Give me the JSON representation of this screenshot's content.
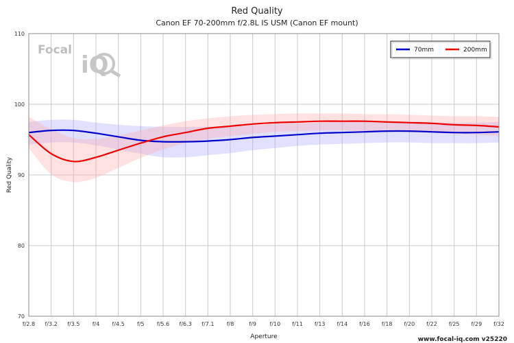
{
  "chart_data": {
    "type": "line",
    "title": "Red Quality",
    "subtitle": "Canon EF 70-200mm f/2.8L IS USM (Canon EF mount)",
    "xlabel": "Aperture",
    "ylabel": "Red Quality",
    "ylim": [
      70,
      110
    ],
    "yticks": [
      70,
      80,
      90,
      100,
      110
    ],
    "categories": [
      "f/2.8",
      "f/3.2",
      "f/3.5",
      "f/4",
      "f/4.5",
      "f/5",
      "f/5.6",
      "f/6.3",
      "f/7.1",
      "f/8",
      "f/9",
      "f/10",
      "f/11",
      "f/13",
      "f/14",
      "f/16",
      "f/18",
      "f/20",
      "f/22",
      "f/25",
      "f/29",
      "f/32"
    ],
    "grid": true,
    "legend_position": "top-right",
    "series": [
      {
        "name": "70mm",
        "color": "#0000cc",
        "band_color": "#aaaaff",
        "values": [
          96.0,
          96.3,
          96.3,
          95.9,
          95.4,
          94.9,
          94.7,
          94.7,
          94.8,
          95.0,
          95.3,
          95.5,
          95.7,
          95.9,
          96.0,
          96.1,
          96.2,
          96.2,
          96.1,
          96.0,
          96.0,
          96.1
        ],
        "upper": [
          97.5,
          97.8,
          97.8,
          97.4,
          97.1,
          96.9,
          96.8,
          96.8,
          96.8,
          96.9,
          97.0,
          97.2,
          97.3,
          97.4,
          97.5,
          97.5,
          97.5,
          97.5,
          97.4,
          97.4,
          97.4,
          97.5
        ],
        "lower": [
          94.3,
          94.6,
          94.6,
          94.2,
          93.6,
          93.0,
          92.5,
          92.5,
          92.8,
          93.1,
          93.5,
          93.8,
          94.1,
          94.3,
          94.4,
          94.5,
          94.6,
          94.6,
          94.5,
          94.5,
          94.5,
          94.6
        ]
      },
      {
        "name": "200mm",
        "color": "#ee0000",
        "band_color": "#ffaaaa",
        "values": [
          95.7,
          93.0,
          91.9,
          92.5,
          93.5,
          94.5,
          95.4,
          96.0,
          96.6,
          96.9,
          97.2,
          97.4,
          97.5,
          97.6,
          97.6,
          97.6,
          97.5,
          97.4,
          97.3,
          97.1,
          97.0,
          96.8
        ],
        "upper": [
          98.2,
          96.5,
          95.2,
          95.1,
          95.6,
          96.3,
          97.0,
          97.6,
          98.0,
          98.3,
          98.5,
          98.6,
          98.7,
          98.7,
          98.7,
          98.6,
          98.6,
          98.5,
          98.4,
          98.3,
          98.3,
          98.2
        ],
        "lower": [
          93.8,
          90.1,
          89.0,
          89.6,
          91.0,
          92.4,
          93.6,
          94.5,
          95.1,
          95.5,
          95.8,
          96.1,
          96.2,
          96.3,
          96.3,
          96.2,
          96.2,
          96.1,
          96.0,
          95.8,
          95.7,
          95.5
        ]
      }
    ]
  },
  "watermark": {
    "logo_word_1": "Focal",
    "logo_word_2": "iQ"
  },
  "footer": {
    "credit": "www.focal-iq.com  v25220"
  }
}
